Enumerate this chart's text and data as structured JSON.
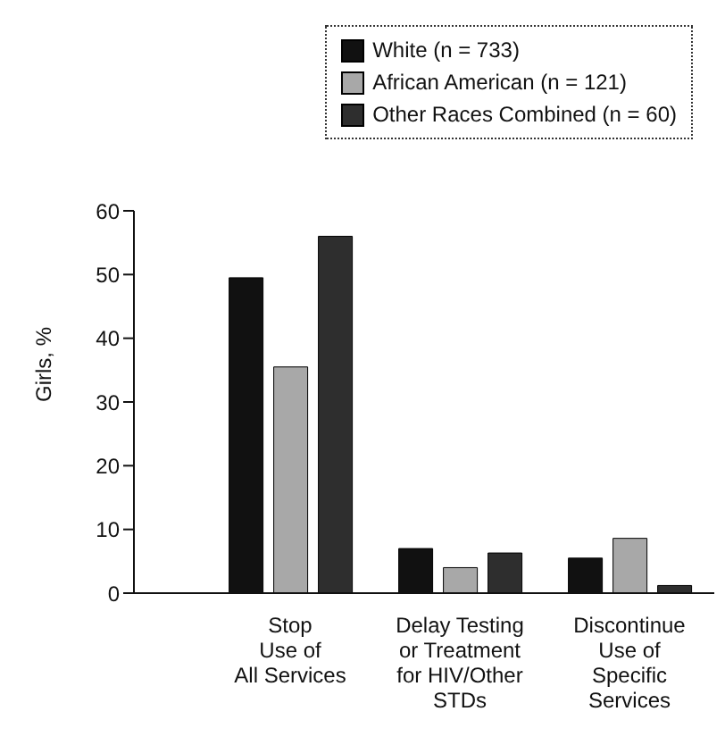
{
  "chart_data": {
    "type": "bar",
    "ylabel": "Girls, %",
    "categories": [
      "Stop\nUse of\nAll Services",
      "Delay Testing\nor Treatment\nfor HIV/Other\nSTDs",
      "Discontinue\nUse of\nSpecific\nServices"
    ],
    "series": [
      {
        "name": "White (n = 733)",
        "color": "#111111",
        "values": [
          49.5,
          7,
          5.5
        ]
      },
      {
        "name": "African American (n = 121)",
        "color": "#a8a8a8",
        "values": [
          35.5,
          4,
          8.6
        ]
      },
      {
        "name": "Other Races Combined (n = 60)",
        "color": "#2e2e2e",
        "values": [
          56,
          6.3,
          1.2
        ]
      }
    ],
    "ylim": [
      0,
      60
    ],
    "yticks": [
      0,
      10,
      20,
      30,
      40,
      50,
      60
    ],
    "grid": false,
    "legend": "top right"
  }
}
